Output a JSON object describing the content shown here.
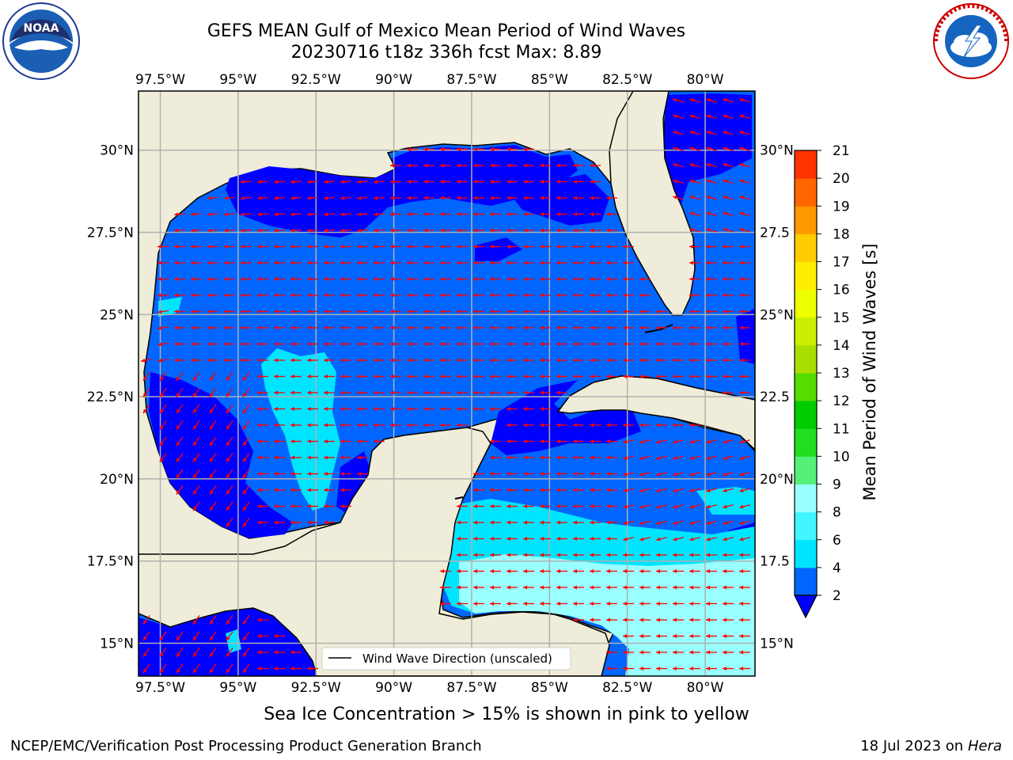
{
  "title_line1": "GEFS MEAN Gulf of Mexico Mean Period of Wind Waves",
  "title_line2": "20230716 t18z 336h fcst   Max: 8.89",
  "legend_label": "Wind Wave Direction (unscaled)",
  "footer_note": "Sea Ice Concentration > 15% is shown in pink to yellow",
  "credit_left": "NCEP/EMC/Verification Post Processing Product Generation Branch",
  "credit_date": "18 Jul 2023 on ",
  "credit_host": "Hera",
  "logos": {
    "left": "noaa-logo",
    "right": "nws-logo"
  },
  "map": {
    "lon_ticks": [
      "97.5°W",
      "95°W",
      "92.5°W",
      "90°W",
      "87.5°W",
      "85°W",
      "82.5°W",
      "80°W"
    ],
    "lat_ticks": [
      "30°N",
      "27.5°N",
      "25°N",
      "22.5°N",
      "20°N",
      "17.5°N",
      "15°N"
    ],
    "lat_ticks_right": [
      "30°N",
      "27.5",
      "25°N",
      "22.5",
      "20°N",
      "17.5",
      "15°N"
    ],
    "lon_range": [
      -98.2,
      -78.4
    ],
    "lat_range": [
      14.0,
      31.8
    ],
    "land_color": "#efedd9",
    "arrow_color": "#ff0000",
    "max_value": 8.89
  },
  "colorbar": {
    "label": "Mean Period of Wind Waves [s]",
    "ticks": [
      "2",
      "4",
      "6",
      "8",
      "9",
      "10",
      "11",
      "12",
      "13",
      "14",
      "15",
      "16",
      "17",
      "18",
      "19",
      "20",
      "21"
    ],
    "colors": [
      "#0066ff",
      "#00e5ff",
      "#40f5ff",
      "#99ffff",
      "#55f07a",
      "#22dd22",
      "#00cc00",
      "#55dd00",
      "#aadd00",
      "#ccee00",
      "#eeff00",
      "#ffee00",
      "#ffcc00",
      "#ff9900",
      "#ff6600",
      "#ff3300"
    ],
    "extend_color": "#0000ff"
  }
}
